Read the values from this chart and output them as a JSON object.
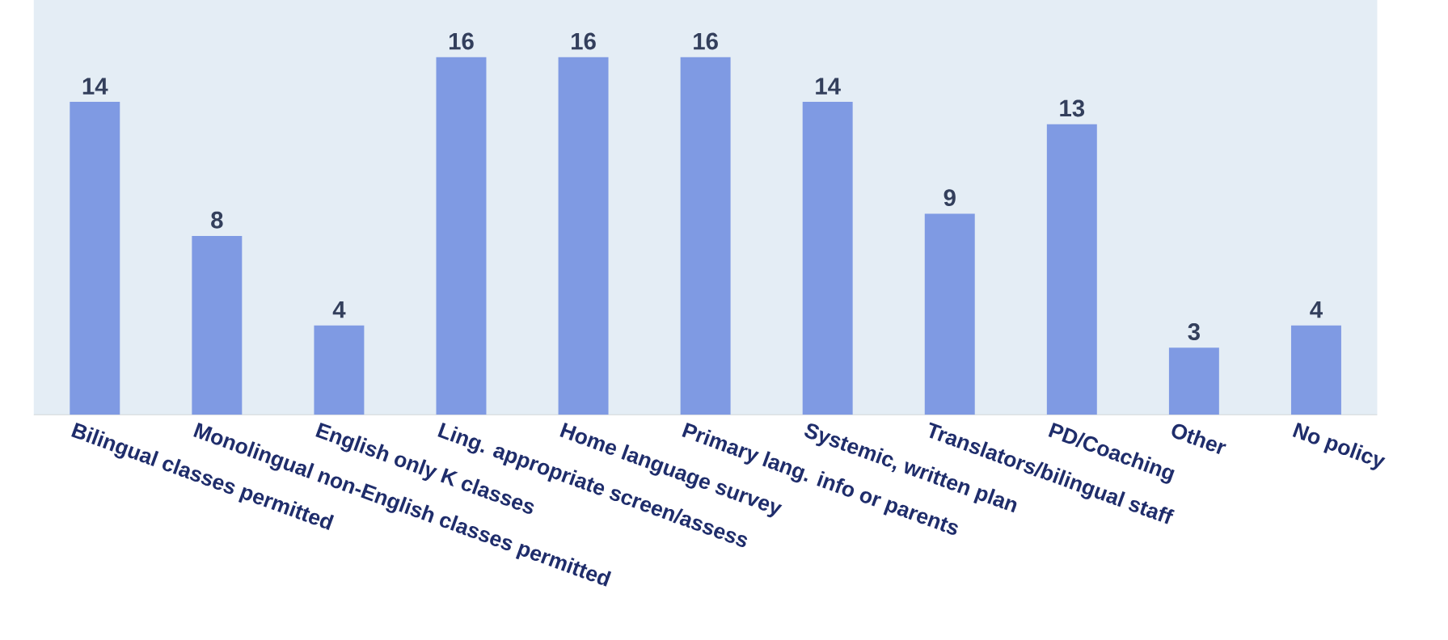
{
  "chart_data": {
    "type": "bar",
    "categories": [
      "Bilingual classes permitted",
      "Monolingual non-English classes permitted",
      "English only K classes",
      "Ling. appropriate screen/assess",
      "Home language survey",
      "Primary lang. info or parents",
      "Systemic, written plan",
      "Translators/bilingual staff",
      "PD/Coaching",
      "Other",
      "No policy"
    ],
    "values": [
      14,
      8,
      4,
      16,
      16,
      16,
      14,
      9,
      13,
      3,
      4
    ],
    "color": "#7f9ae3",
    "data_labels": true
  }
}
